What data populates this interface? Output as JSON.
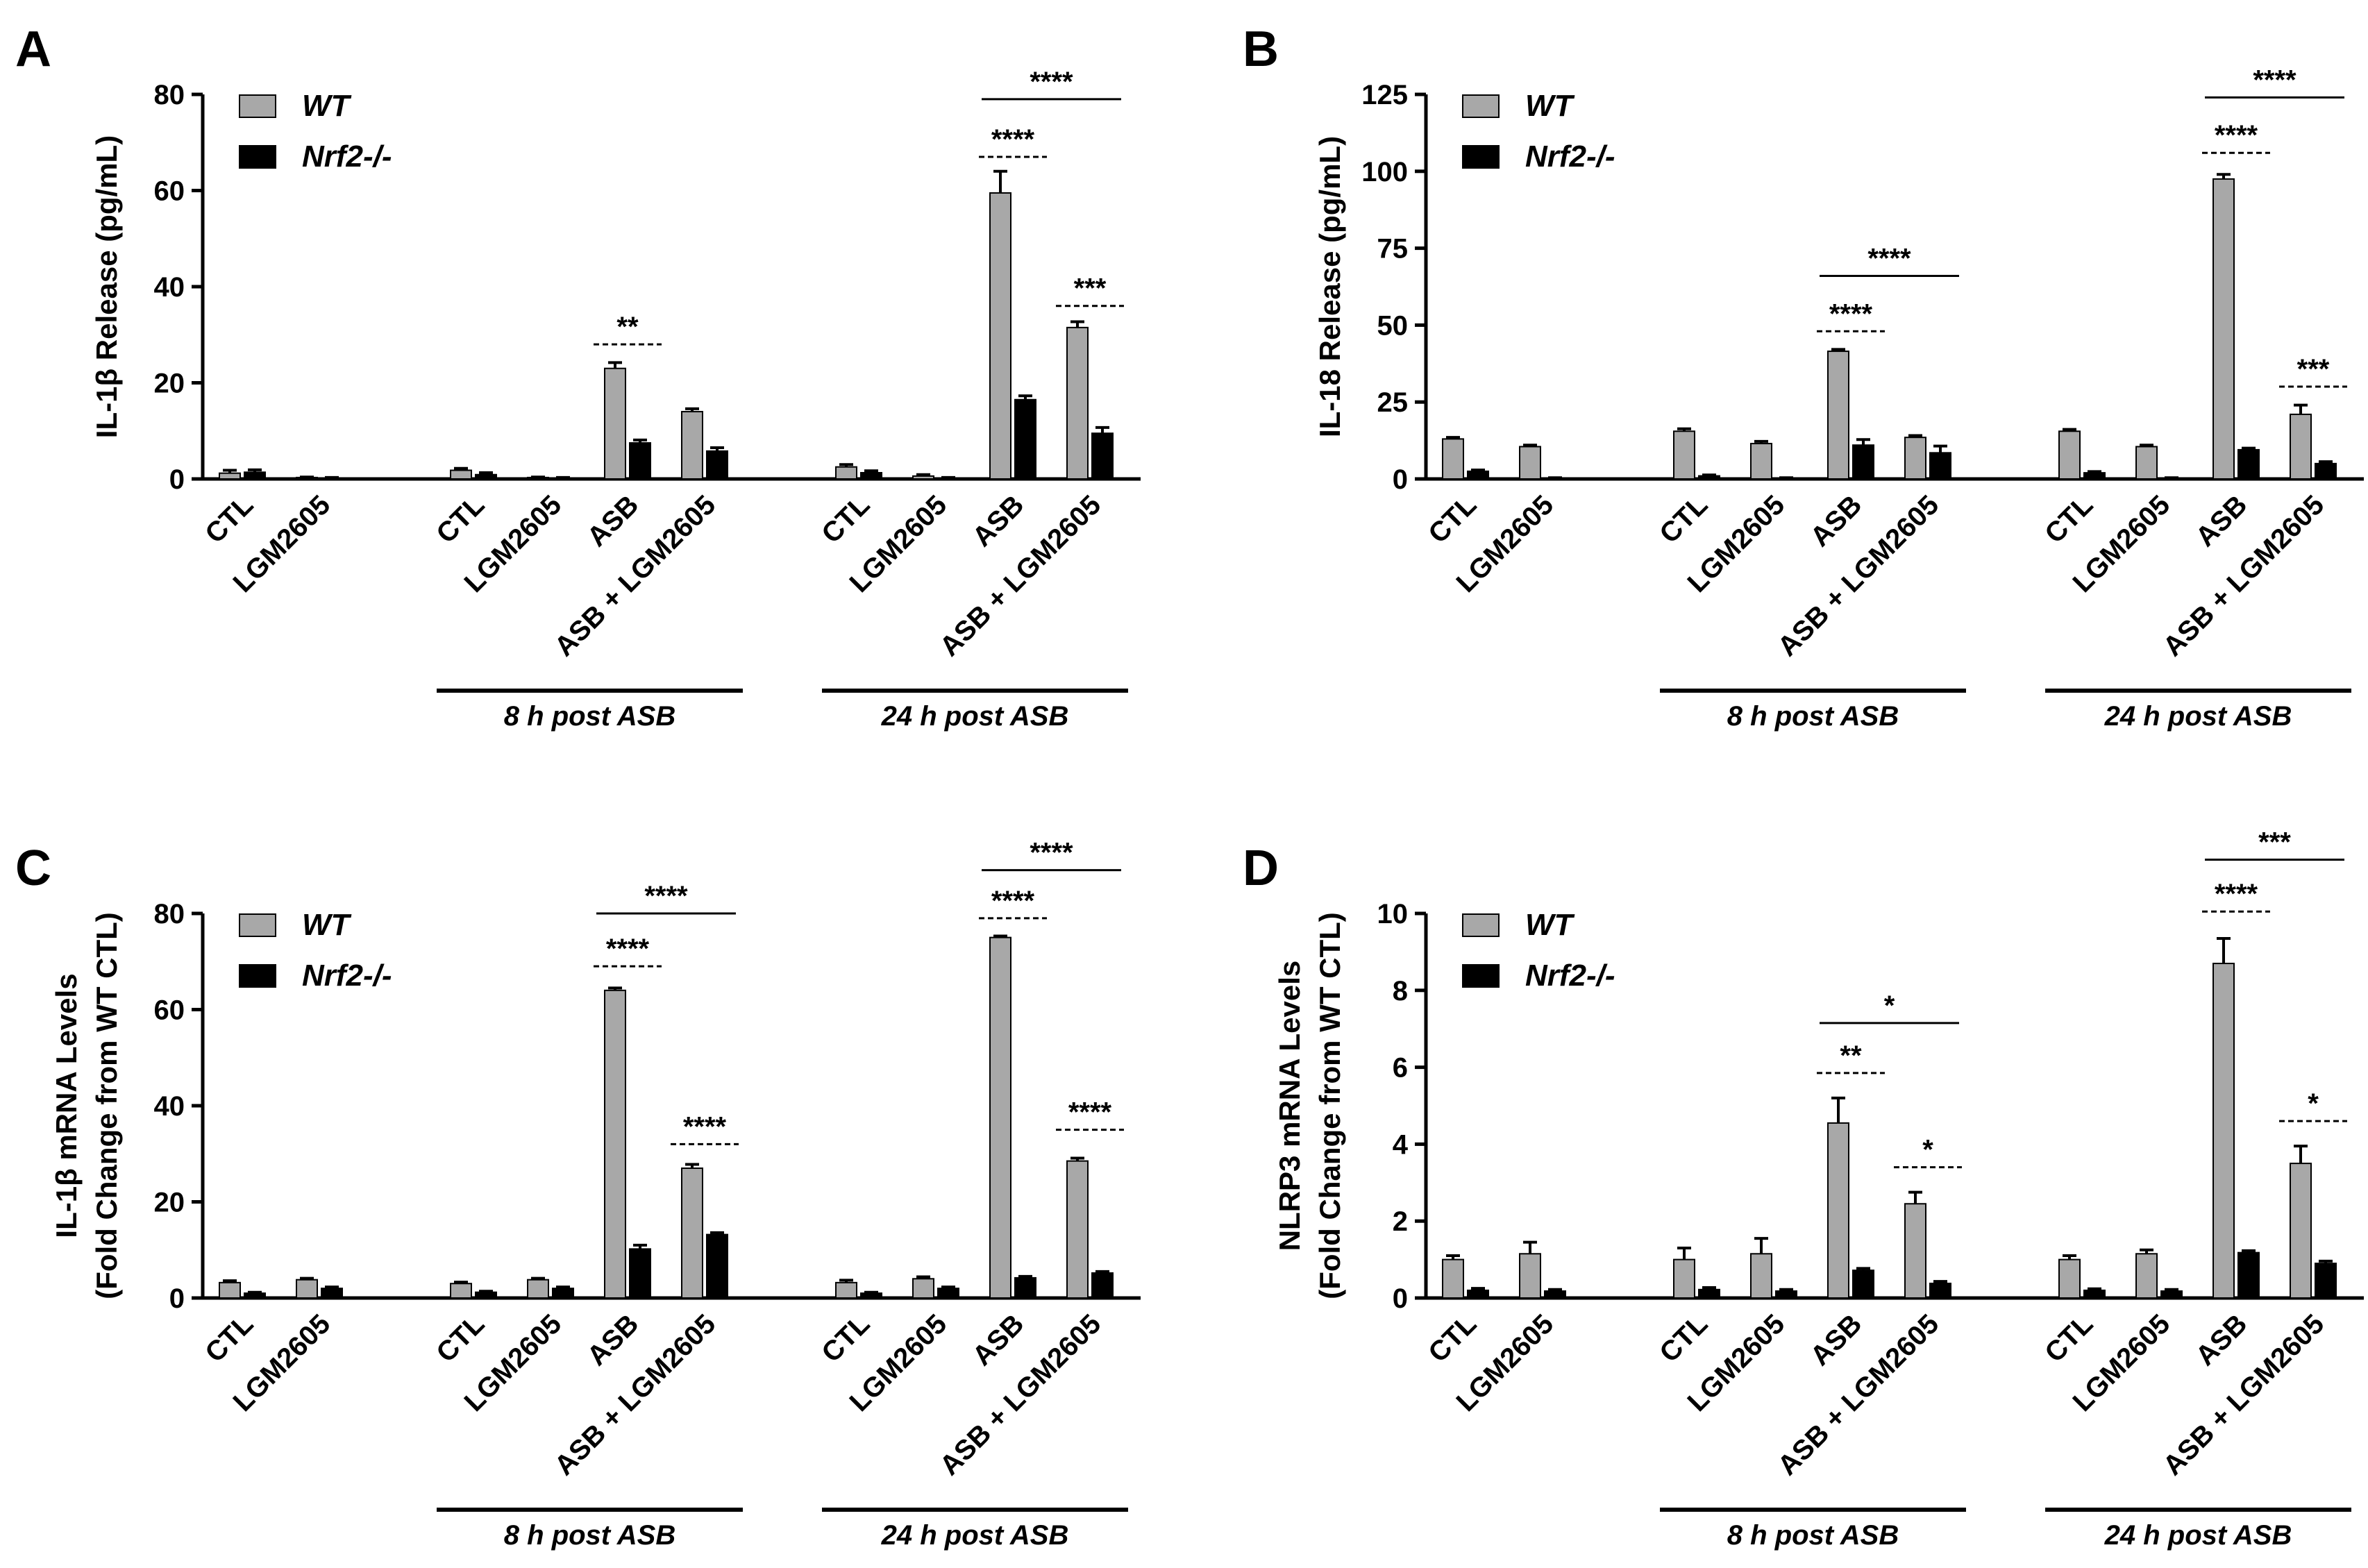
{
  "legend": {
    "wt": "WT",
    "ko": "Nrf2-/-"
  },
  "colors": {
    "wt": "#a8a8a8",
    "ko": "#000000",
    "axis": "#000000"
  },
  "chart_data": [
    {
      "panel": "A",
      "type": "bar",
      "ylabel": "IL-1β Release (pg/mL)",
      "ylim": [
        0,
        80
      ],
      "yticks": [
        0,
        20,
        40,
        60,
        80
      ],
      "series": [
        {
          "name": "WT",
          "values": [
            1.2,
            0.3,
            1.8,
            0.3,
            23.0,
            14.0,
            2.5,
            0.6,
            59.5,
            31.5
          ],
          "errors": [
            0.6,
            0.1,
            0.4,
            0.1,
            1.2,
            0.6,
            0.5,
            0.3,
            4.5,
            1.2
          ]
        },
        {
          "name": "Nrf2-/-",
          "values": [
            1.4,
            0.2,
            0.9,
            0.2,
            7.5,
            5.8,
            1.3,
            0.2,
            16.5,
            9.5
          ],
          "errors": [
            0.5,
            0.1,
            0.4,
            0.1,
            0.6,
            0.7,
            0.4,
            0.1,
            0.8,
            1.2
          ]
        }
      ],
      "categories": [
        "CTL",
        "LGM2605",
        "CTL",
        "LGM2605",
        "ASB",
        "ASB + LGM2605",
        "CTL",
        "LGM2605",
        "ASB",
        "ASB + LGM2605"
      ],
      "groups": [
        {
          "label": "8 h post ASB",
          "start": 2,
          "end": 5
        },
        {
          "label": "24 h post ASB",
          "start": 6,
          "end": 9
        }
      ],
      "annotations": [
        {
          "text": "**",
          "from": 4,
          "to": 4,
          "y": 28,
          "style": "dashed"
        },
        {
          "text": "****",
          "from": 8,
          "to": 8,
          "y": 67,
          "style": "dashed"
        },
        {
          "text": "****",
          "from": 8,
          "to": 9,
          "y": 79,
          "style": "solid"
        },
        {
          "text": "***",
          "from": 9,
          "to": 9,
          "y": 36,
          "style": "dashed"
        }
      ]
    },
    {
      "panel": "B",
      "type": "bar",
      "ylabel": "IL-18 Release (pg/mL)",
      "ylim": [
        0,
        125
      ],
      "yticks": [
        0,
        25,
        50,
        75,
        100,
        125
      ],
      "series": [
        {
          "name": "WT",
          "values": [
            13,
            10.5,
            15.5,
            11.5,
            41.5,
            13.5,
            15.5,
            10.5,
            97.5,
            21
          ],
          "errors": [
            0.5,
            0.5,
            0.8,
            0.7,
            0.6,
            0.6,
            0.6,
            0.5,
            1.5,
            3.0
          ]
        },
        {
          "name": "Nrf2-/-",
          "values": [
            2.5,
            0.3,
            1.0,
            0.3,
            11,
            8.5,
            2.0,
            0.3,
            9.5,
            5.0
          ],
          "errors": [
            0.4,
            0.1,
            0.3,
            0.1,
            1.8,
            2.2,
            0.4,
            0.1,
            0.5,
            0.6
          ]
        }
      ],
      "categories": [
        "CTL",
        "LGM2605",
        "CTL",
        "LGM2605",
        "ASB",
        "ASB + LGM2605",
        "CTL",
        "LGM2605",
        "ASB",
        "ASB + LGM2605"
      ],
      "groups": [
        {
          "label": "8 h post ASB",
          "start": 2,
          "end": 5
        },
        {
          "label": "24 h post ASB",
          "start": 6,
          "end": 9
        }
      ],
      "annotations": [
        {
          "text": "****",
          "from": 4,
          "to": 4,
          "y": 48,
          "style": "dashed"
        },
        {
          "text": "****",
          "from": 4,
          "to": 5,
          "y": 66,
          "style": "solid"
        },
        {
          "text": "****",
          "from": 8,
          "to": 8,
          "y": 106,
          "style": "dashed"
        },
        {
          "text": "****",
          "from": 8,
          "to": 9,
          "y": 124,
          "style": "solid"
        },
        {
          "text": "***",
          "from": 9,
          "to": 9,
          "y": 30,
          "style": "dashed"
        }
      ]
    },
    {
      "panel": "C",
      "type": "bar",
      "ylabel": "IL-1β mRNA Levels",
      "ylabel2": "(Fold Change from WT CTL)",
      "ylim": [
        0,
        80
      ],
      "yticks": [
        0,
        20,
        40,
        60,
        80
      ],
      "series": [
        {
          "name": "WT",
          "values": [
            3.2,
            3.8,
            3.0,
            3.8,
            64,
            27,
            3.2,
            4.0,
            75,
            28.5
          ],
          "errors": [
            0.4,
            0.3,
            0.3,
            0.3,
            0.5,
            0.8,
            0.5,
            0.4,
            0.3,
            0.6
          ]
        },
        {
          "name": "Nrf2-/-",
          "values": [
            1.0,
            2.0,
            1.2,
            2.0,
            10.2,
            13.2,
            1.0,
            2.0,
            4.2,
            5.2
          ],
          "errors": [
            0.2,
            0.3,
            0.2,
            0.3,
            0.8,
            0.4,
            0.2,
            0.3,
            0.3,
            0.3
          ]
        }
      ],
      "categories": [
        "CTL",
        "LGM2605",
        "CTL",
        "LGM2605",
        "ASB",
        "ASB + LGM2605",
        "CTL",
        "LGM2605",
        "ASB",
        "ASB + LGM2605"
      ],
      "groups": [
        {
          "label": "8 h post ASB",
          "start": 2,
          "end": 5
        },
        {
          "label": "24 h post ASB",
          "start": 6,
          "end": 9
        }
      ],
      "annotations": [
        {
          "text": "****",
          "from": 4,
          "to": 4,
          "y": 69,
          "style": "dashed"
        },
        {
          "text": "****",
          "from": 4,
          "to": 5,
          "y": 80,
          "style": "solid"
        },
        {
          "text": "****",
          "from": 5,
          "to": 5,
          "y": 32,
          "style": "dashed"
        },
        {
          "text": "****",
          "from": 8,
          "to": 8,
          "y": 79,
          "style": "dashed"
        },
        {
          "text": "****",
          "from": 8,
          "to": 9,
          "y": 89,
          "style": "solid"
        },
        {
          "text": "****",
          "from": 9,
          "to": 9,
          "y": 35,
          "style": "dashed"
        }
      ]
    },
    {
      "panel": "D",
      "type": "bar",
      "ylabel": "NLRP3 mRNA Levels",
      "ylabel2": "(Fold Change from WT CTL)",
      "ylim": [
        0,
        10
      ],
      "yticks": [
        0,
        2,
        4,
        6,
        8,
        10
      ],
      "series": [
        {
          "name": "WT",
          "values": [
            1.0,
            1.15,
            1.0,
            1.15,
            4.55,
            2.45,
            1.0,
            1.15,
            8.7,
            3.5
          ],
          "errors": [
            0.1,
            0.3,
            0.3,
            0.4,
            0.65,
            0.3,
            0.1,
            0.1,
            0.65,
            0.45
          ]
        },
        {
          "name": "Nrf2-/-",
          "values": [
            0.2,
            0.18,
            0.22,
            0.18,
            0.72,
            0.38,
            0.2,
            0.18,
            1.18,
            0.9
          ],
          "errors": [
            0.05,
            0.04,
            0.05,
            0.04,
            0.05,
            0.05,
            0.04,
            0.04,
            0.05,
            0.06
          ]
        }
      ],
      "categories": [
        "CTL",
        "LGM2605",
        "CTL",
        "LGM2605",
        "ASB",
        "ASB + LGM2605",
        "CTL",
        "LGM2605",
        "ASB",
        "ASB + LGM2605"
      ],
      "groups": [
        {
          "label": "8 h post ASB",
          "start": 2,
          "end": 5
        },
        {
          "label": "24 h post ASB",
          "start": 6,
          "end": 9
        }
      ],
      "annotations": [
        {
          "text": "**",
          "from": 4,
          "to": 4,
          "y": 5.85,
          "style": "dashed"
        },
        {
          "text": "*",
          "from": 4,
          "to": 5,
          "y": 7.15,
          "style": "solid"
        },
        {
          "text": "*",
          "from": 5,
          "to": 5,
          "y": 3.4,
          "style": "dashed"
        },
        {
          "text": "****",
          "from": 8,
          "to": 8,
          "y": 10.05,
          "style": "dashed"
        },
        {
          "text": "***",
          "from": 8,
          "to": 9,
          "y": 11.4,
          "style": "solid"
        },
        {
          "text": "*",
          "from": 9,
          "to": 9,
          "y": 4.6,
          "style": "dashed"
        }
      ]
    }
  ]
}
